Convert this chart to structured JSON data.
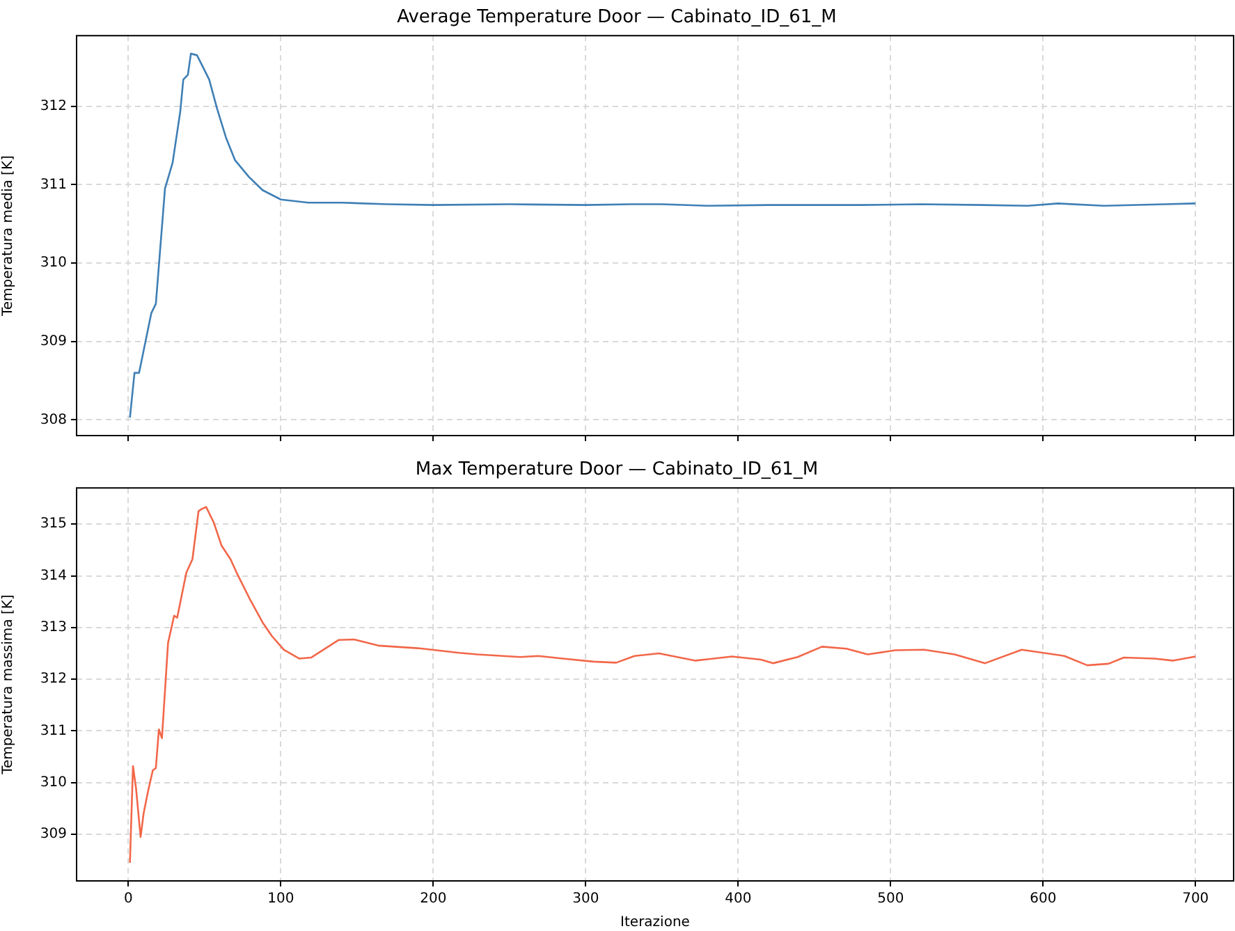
{
  "chart_data": [
    {
      "type": "line",
      "title": "Average Temperature Door — Cabinato_ID_61_M",
      "ylabel": "Temperatura media [K]",
      "xlim": [
        -34,
        725
      ],
      "xticks": [
        0,
        100,
        200,
        300,
        400,
        500,
        600,
        700
      ],
      "ylim": [
        307.8,
        312.9
      ],
      "yticks": [
        308,
        309,
        310,
        311,
        312
      ],
      "grid": true,
      "tick_labels": "y",
      "marker": "none",
      "x": [
        1,
        4,
        7,
        15,
        18,
        24,
        29,
        34,
        36,
        39,
        41,
        45,
        53,
        58,
        64,
        70,
        79,
        88,
        100,
        118,
        140,
        170,
        200,
        250,
        300,
        330,
        350,
        380,
        420,
        480,
        520,
        560,
        590,
        610,
        640,
        680,
        700
      ],
      "series": [
        {
          "color": "#3f7fb5",
          "values": [
            308.03,
            308.6,
            308.6,
            309.36,
            309.48,
            310.95,
            311.28,
            311.93,
            312.34,
            312.4,
            312.67,
            312.65,
            312.34,
            311.98,
            311.6,
            311.31,
            311.1,
            310.93,
            310.81,
            310.77,
            310.77,
            310.75,
            310.74,
            310.75,
            310.74,
            310.75,
            310.75,
            310.73,
            310.74,
            310.74,
            310.75,
            310.74,
            310.73,
            310.76,
            310.73,
            310.75,
            310.76
          ]
        }
      ]
    },
    {
      "type": "line",
      "title": "Max Temperature Door — Cabinato_ID_61_M",
      "xlabel": "Iterazione",
      "ylabel": "Temperatura massima [K]",
      "xlim": [
        -34,
        725
      ],
      "xticks": [
        0,
        100,
        200,
        300,
        400,
        500,
        600,
        700
      ],
      "ylim": [
        308.1,
        315.7
      ],
      "yticks": [
        309,
        310,
        311,
        312,
        313,
        314,
        315
      ],
      "grid": true,
      "marker": "none",
      "x": [
        1,
        3,
        5,
        8,
        10,
        13,
        16,
        18,
        20,
        22,
        26,
        30,
        32,
        38,
        42,
        46,
        48,
        51,
        56,
        61,
        67,
        71,
        80,
        88,
        94,
        102,
        112,
        120,
        138,
        148,
        164,
        190,
        217,
        229,
        257,
        269,
        285,
        305,
        320,
        332,
        348,
        372,
        396,
        415,
        423,
        439,
        455,
        471,
        485,
        503,
        522,
        542,
        562,
        586,
        614,
        629,
        643,
        653,
        673,
        685,
        700
      ],
      "series": [
        {
          "color": "#f26749",
          "values": [
            308.45,
            310.32,
            309.89,
            308.95,
            309.41,
            309.85,
            310.24,
            310.28,
            311.03,
            310.86,
            312.7,
            313.23,
            313.19,
            314.06,
            314.32,
            315.25,
            315.29,
            315.33,
            315.03,
            314.59,
            314.32,
            314.06,
            313.53,
            313.1,
            312.84,
            312.57,
            312.4,
            312.42,
            312.76,
            312.77,
            312.65,
            312.6,
            312.51,
            312.48,
            312.43,
            312.45,
            312.4,
            312.34,
            312.32,
            312.45,
            312.5,
            312.36,
            312.44,
            312.38,
            312.31,
            312.43,
            312.63,
            312.59,
            312.48,
            312.56,
            312.57,
            312.48,
            312.31,
            312.57,
            312.45,
            312.27,
            312.3,
            312.42,
            312.4,
            312.36,
            312.44
          ]
        }
      ]
    }
  ]
}
